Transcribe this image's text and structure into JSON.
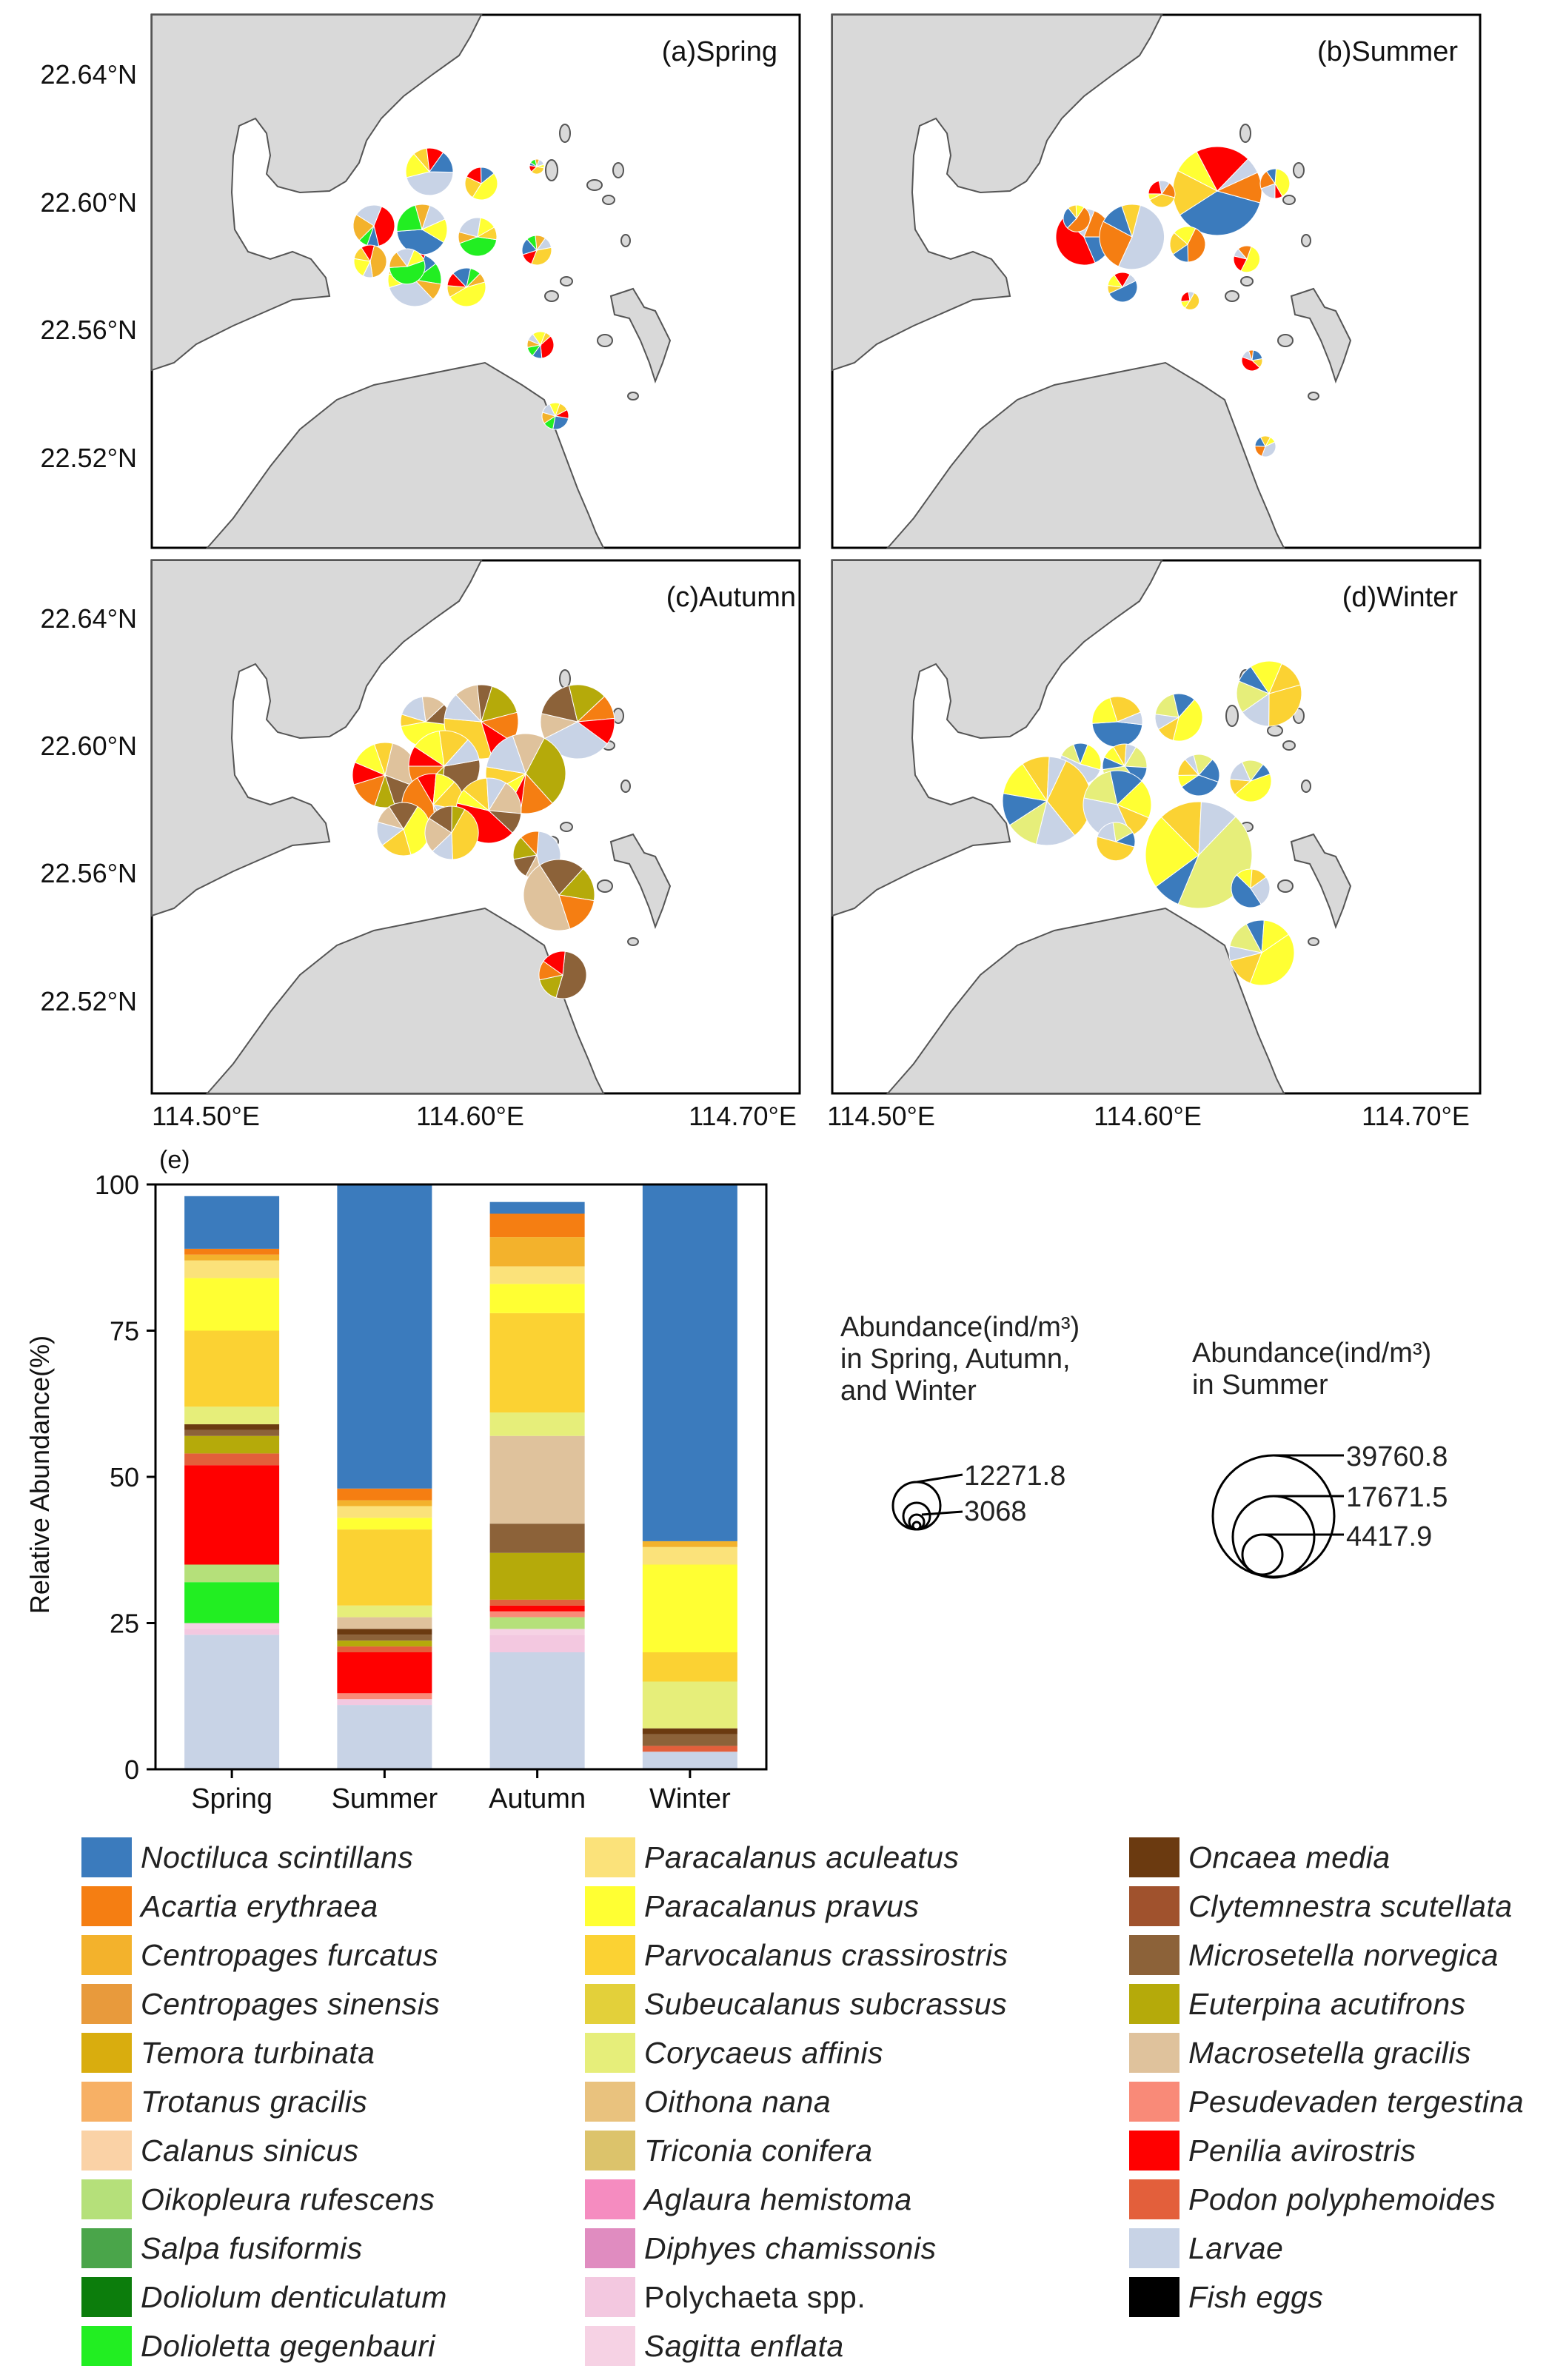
{
  "maps": {
    "lat_ticks": [
      "22.64°N",
      "22.60°N",
      "22.56°N",
      "22.52°N"
    ],
    "lon_ticks": [
      "114.50°E",
      "114.60°E",
      "114.70°E"
    ],
    "panels": [
      {
        "title": "(a)Spring"
      },
      {
        "title": "(b)Summer"
      },
      {
        "title": "(c)Autumn"
      },
      {
        "title": "(d)Winter"
      }
    ]
  },
  "size_legend": {
    "group1_title": [
      "Abundance(ind/m³)",
      "in Spring, Autumn,",
      "and Winter"
    ],
    "group1_values": [
      "12271.8",
      "3068"
    ],
    "group2_title": [
      "Abundance(ind/m³)",
      "in Summer"
    ],
    "group2_values": [
      "39760.8",
      "17671.5",
      "4417.9"
    ]
  },
  "chart_data": {
    "type": "bar",
    "stacked": true,
    "panel_label": "(e)",
    "ylabel": "Relative Abundance(%)",
    "ylim": [
      0,
      100
    ],
    "yticks": [
      "0",
      "25",
      "50",
      "75",
      "100"
    ],
    "categories": [
      "Spring",
      "Summer",
      "Autumn",
      "Winter"
    ],
    "series": [
      {
        "name": "Larvae",
        "color": "#c8d3e6",
        "values": [
          23,
          11,
          20,
          3
        ]
      },
      {
        "name": "Polychaeta spp.",
        "color": "#f3c8e0",
        "values": [
          1,
          1,
          3,
          0
        ]
      },
      {
        "name": "Sagitta enflata",
        "color": "#f6d2e4",
        "values": [
          1,
          0,
          1,
          0
        ]
      },
      {
        "name": "Dolioletta gegenbauri",
        "color": "#22ee22",
        "values": [
          7,
          0,
          0,
          0
        ]
      },
      {
        "name": "Oikopleura rufescens",
        "color": "#b5e07a",
        "values": [
          3,
          0,
          2,
          0
        ]
      },
      {
        "name": "Pesudevaden tergestina",
        "color": "#f98a78",
        "values": [
          0,
          1,
          1,
          0
        ]
      },
      {
        "name": "Penilia avirostris",
        "color": "#ff0000",
        "values": [
          17,
          7,
          1,
          0
        ]
      },
      {
        "name": "Podon polyphemoides",
        "color": "#e35f3b",
        "values": [
          2,
          1,
          1,
          1
        ]
      },
      {
        "name": "Euterpina acutifrons",
        "color": "#b5aa0a",
        "values": [
          3,
          1,
          8,
          0
        ]
      },
      {
        "name": "Microsetella norvegica",
        "color": "#8c6239",
        "values": [
          1,
          1,
          5,
          2
        ]
      },
      {
        "name": "Oncaea media",
        "color": "#6b3a10",
        "values": [
          1,
          1,
          0,
          1
        ]
      },
      {
        "name": "Macrosetella gracilis",
        "color": "#dfc29c",
        "values": [
          0,
          2,
          15,
          0
        ]
      },
      {
        "name": "Corycaeus affinis",
        "color": "#e6ee7a",
        "values": [
          3,
          2,
          4,
          8
        ]
      },
      {
        "name": "Parvocalanus crassirostris",
        "color": "#fbd233",
        "values": [
          13,
          13,
          17,
          5
        ]
      },
      {
        "name": "Paracalanus pravus",
        "color": "#ffff33",
        "values": [
          9,
          2,
          5,
          15
        ]
      },
      {
        "name": "Paracalanus aculeatus",
        "color": "#fbe27a",
        "values": [
          3,
          2,
          3,
          3
        ]
      },
      {
        "name": "Centropages furcatus",
        "color": "#f3b22c",
        "values": [
          1,
          1,
          5,
          1
        ]
      },
      {
        "name": "Acartia erythraea",
        "color": "#f57e12",
        "values": [
          1,
          2,
          4,
          0
        ]
      },
      {
        "name": "Noctiluca scintillans",
        "color": "#3b7bbd",
        "values": [
          9,
          52,
          2,
          61
        ]
      }
    ],
    "legend": [
      {
        "label": "Noctiluca scintillans",
        "color": "#3b7bbd"
      },
      {
        "label": "Acartia erythraea",
        "color": "#f57e12"
      },
      {
        "label": "Centropages furcatus",
        "color": "#f3b22c"
      },
      {
        "label": "Centropages sinensis",
        "color": "#e89a3c"
      },
      {
        "label": "Temora turbinata",
        "color": "#d9ad0e"
      },
      {
        "label": "Trotanus gracilis",
        "color": "#f7b065"
      },
      {
        "label": "Calanus sinicus",
        "color": "#fad2a6"
      },
      {
        "label": "Oikopleura rufescens",
        "color": "#b5e07a"
      },
      {
        "label": "Salpa fusiformis",
        "color": "#4aa54a"
      },
      {
        "label": "Doliolum denticulatum",
        "color": "#0c7d0c"
      },
      {
        "label": "Dolioletta gegenbauri",
        "color": "#22ee22"
      },
      {
        "label": "Paracalanus aculeatus",
        "color": "#fbe27a"
      },
      {
        "label": "Paracalanus pravus",
        "color": "#ffff33"
      },
      {
        "label": "Parvocalanus crassirostris",
        "color": "#fbd233"
      },
      {
        "label": "Subeucalanus subcrassus",
        "color": "#e3d03a"
      },
      {
        "label": "Corycaeus affinis",
        "color": "#e6ee7a"
      },
      {
        "label": "Oithona nana",
        "color": "#e9c27e"
      },
      {
        "label": "Triconia conifera",
        "color": "#dcc36b"
      },
      {
        "label": "Aglaura hemistoma",
        "color": "#f58cc0"
      },
      {
        "label": "Diphyes chamissonis",
        "color": "#e08cc0"
      },
      {
        "label": "Polychaeta spp.",
        "color": "#f3c8e0"
      },
      {
        "label": "Sagitta enflata",
        "color": "#f6d2e4"
      },
      {
        "label": "Oncaea media",
        "color": "#6b3a10"
      },
      {
        "label": "Clytemnestra scutellata",
        "color": "#a0522d"
      },
      {
        "label": "Microsetella norvegica",
        "color": "#8c6239"
      },
      {
        "label": "Euterpina acutifrons",
        "color": "#b5aa0a"
      },
      {
        "label": "Macrosetella gracilis",
        "color": "#dfc29c"
      },
      {
        "label": "Pesudevaden tergestina",
        "color": "#f98a78"
      },
      {
        "label": "Penilia avirostris",
        "color": "#ff0000"
      },
      {
        "label": "Podon polyphemoides",
        "color": "#e35f3b"
      },
      {
        "label": "Larvae",
        "color": "#c8d3e6"
      },
      {
        "label": "Fish eggs",
        "color": "#000000"
      }
    ]
  }
}
